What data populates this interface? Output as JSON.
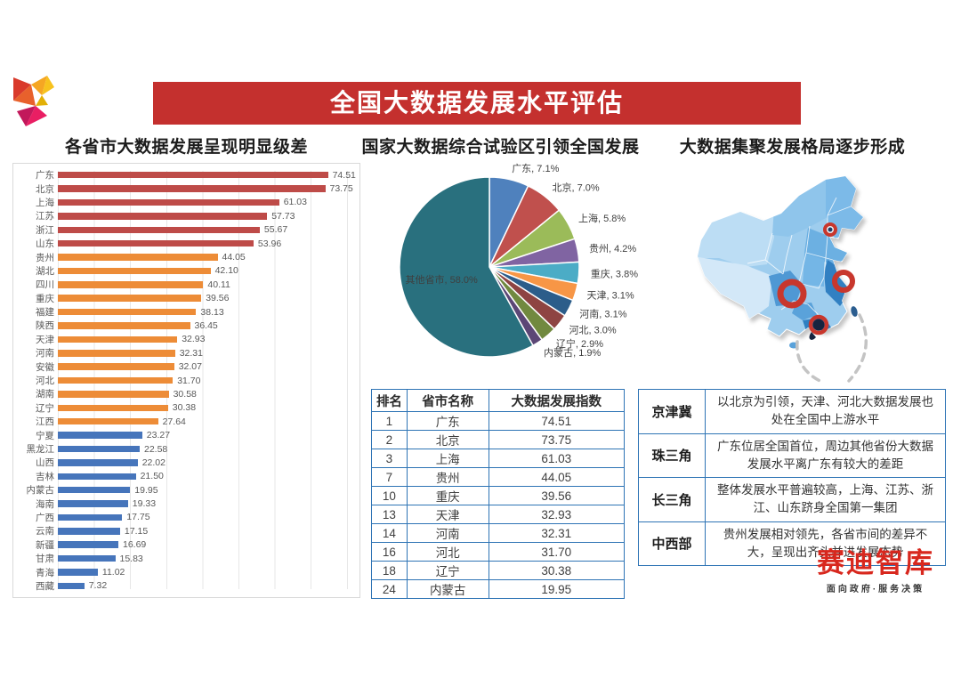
{
  "banner": {
    "title": "全国大数据发展水平评估"
  },
  "sections": {
    "left_header": "各省市大数据发展呈现明显级差",
    "middle_header": "国家大数据综合试验区引领全国发展",
    "right_header": "大数据集聚发展格局逐步形成"
  },
  "chart_data": [
    {
      "type": "bar",
      "orientation": "horizontal",
      "title": "各省市大数据发展呈现明显级差",
      "xlabel": "",
      "ylabel": "",
      "xlim": [
        0,
        80
      ],
      "grid_interval": 10,
      "categories": [
        "广东",
        "北京",
        "上海",
        "江苏",
        "浙江",
        "山东",
        "贵州",
        "湖北",
        "四川",
        "重庆",
        "福建",
        "陕西",
        "天津",
        "河南",
        "安徽",
        "河北",
        "湖南",
        "辽宁",
        "江西",
        "宁夏",
        "黑龙江",
        "山西",
        "吉林",
        "内蒙古",
        "海南",
        "广西",
        "云南",
        "新疆",
        "甘肃",
        "青海",
        "西藏"
      ],
      "values": [
        "74.51",
        "73.75",
        "61.03",
        "57.73",
        "55.67",
        "53.96",
        "44.05",
        "42.10",
        "40.11",
        "39.56",
        "38.13",
        "36.45",
        "32.93",
        "32.31",
        "32.07",
        "31.70",
        "30.58",
        "30.38",
        "27.64",
        "23.27",
        "22.58",
        "22.02",
        "21.50",
        "19.95",
        "19.33",
        "17.75",
        "17.15",
        "16.69",
        "15.83",
        "11.02",
        "7.32"
      ],
      "tiers": [
        "red",
        "red",
        "red",
        "red",
        "red",
        "red",
        "orange",
        "orange",
        "orange",
        "orange",
        "orange",
        "orange",
        "orange",
        "orange",
        "orange",
        "orange",
        "orange",
        "orange",
        "orange",
        "blue",
        "blue",
        "blue",
        "blue",
        "blue",
        "blue",
        "blue",
        "blue",
        "blue",
        "blue",
        "blue",
        "blue"
      ],
      "colors": {
        "red": "#BE4B48",
        "orange": "#ED8C37",
        "blue": "#4675BB"
      }
    },
    {
      "type": "pie",
      "title": "国家大数据综合试验区引领全国发展",
      "labels": [
        "广东",
        "北京",
        "上海",
        "贵州",
        "重庆",
        "天津",
        "河南",
        "河北",
        "辽宁",
        "内蒙古",
        "其他省市"
      ],
      "values": [
        "7.1",
        "7.0",
        "5.8",
        "4.2",
        "3.8",
        "3.1",
        "3.1",
        "3.0",
        "2.9",
        "1.9",
        "58.0"
      ],
      "colors": [
        "#4F81BD",
        "#C0504D",
        "#9BBB59",
        "#8064A2",
        "#4BACC6",
        "#F79646",
        "#2C5D8A",
        "#8E4442",
        "#71893F",
        "#5C4776",
        "#29707E"
      ],
      "start_angle": "12-oclock-clockwise",
      "legend_position": "outside-labels"
    }
  ],
  "index_table": {
    "headers": [
      "排名",
      "省市名称",
      "大数据发展指数"
    ],
    "rows": [
      [
        "1",
        "广东",
        "74.51"
      ],
      [
        "2",
        "北京",
        "73.75"
      ],
      [
        "3",
        "上海",
        "61.03"
      ],
      [
        "7",
        "贵州",
        "44.05"
      ],
      [
        "10",
        "重庆",
        "39.56"
      ],
      [
        "13",
        "天津",
        "32.93"
      ],
      [
        "14",
        "河南",
        "32.31"
      ],
      [
        "16",
        "河北",
        "31.70"
      ],
      [
        "18",
        "辽宁",
        "30.38"
      ],
      [
        "24",
        "内蒙古",
        "19.95"
      ]
    ]
  },
  "region_table": {
    "rows": [
      {
        "region": "京津冀",
        "desc": "以北京为引领，天津、河北大数据发展也处在全国中上游水平"
      },
      {
        "region": "珠三角",
        "desc": "广东位居全国首位，周边其他省份大数据发展水平离广东有较大的差距"
      },
      {
        "region": "长三角",
        "desc": "整体发展水平普遍较高，上海、江苏、浙江、山东跻身全国第一集团"
      },
      {
        "region": "中西部",
        "desc": "贵州发展相对领先，各省市间的差异不大，呈现出齐头并进发展态势"
      }
    ]
  },
  "map": {
    "name": "china-map",
    "marker_regions": [
      "京津冀",
      "长三角",
      "中西部",
      "珠三角"
    ]
  },
  "logo": {
    "name": "赛迪智库",
    "tagline": "面向政府·服务决策"
  },
  "theme": {
    "banner_red": "#C4302E",
    "table_border_blue": "#2E74B5",
    "logo_red": "#D8281E"
  }
}
